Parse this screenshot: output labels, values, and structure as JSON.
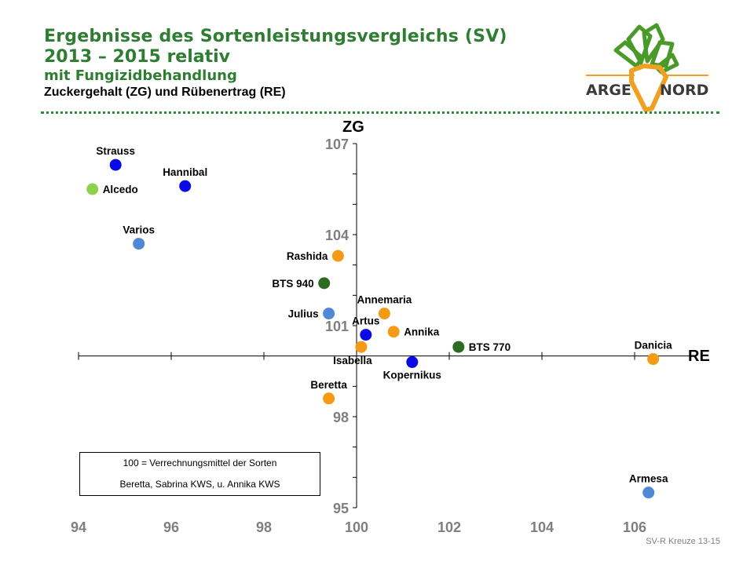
{
  "header": {
    "title_line1": "Ergebnisse des Sortenleistungsvergleichs (SV)",
    "title_line2": "2013 – 2015 relativ",
    "title_line3": "mit Fungizidbehandlung",
    "subtitle": "Zuckergehalt (ZG)  und Rübenertrag (RE)"
  },
  "logo": {
    "word_left": "ARGE",
    "word_right": "NORD",
    "colors": {
      "green": "#4a9a2a",
      "orange": "#f0a020",
      "text": "#3a3a3a"
    }
  },
  "legend_note": {
    "line1": "100 = Verrechnungsmittel der Sorten",
    "line2": "Beretta, Sabrina KWS, u. Annika KWS"
  },
  "footer": "SV-R Kreuze 13-15",
  "colors": {
    "blue": "#0a0ae6",
    "lightblue": "#4f88d6",
    "orange": "#f59a14",
    "darkgreen": "#2e6b22",
    "lightgreen": "#8ed14c"
  },
  "chart_data": {
    "type": "scatter",
    "xlabel": "RE",
    "ylabel": "ZG",
    "xlim": [
      94,
      107.3
    ],
    "ylim": [
      95,
      107
    ],
    "x_ticks": [
      94,
      96,
      98,
      100,
      102,
      104,
      106
    ],
    "y_ticks": [
      95,
      98,
      101,
      104,
      107
    ],
    "x_axis_crosses_at_y": 100,
    "y_axis_crosses_at_x": 100,
    "points": [
      {
        "label": "Strauss",
        "x": 94.8,
        "y": 106.3,
        "color": "blue",
        "label_pos": "above"
      },
      {
        "label": "Alcedo",
        "x": 94.3,
        "y": 105.5,
        "color": "lightgreen",
        "label_pos": "right"
      },
      {
        "label": "Hannibal",
        "x": 96.3,
        "y": 105.6,
        "color": "blue",
        "label_pos": "above"
      },
      {
        "label": "Varios",
        "x": 95.3,
        "y": 103.7,
        "color": "lightblue",
        "label_pos": "above"
      },
      {
        "label": "Rashida",
        "x": 99.6,
        "y": 103.3,
        "color": "orange",
        "label_pos": "left"
      },
      {
        "label": "BTS 940",
        "x": 99.3,
        "y": 102.4,
        "color": "darkgreen",
        "label_pos": "left"
      },
      {
        "label": "Annemaria",
        "x": 100.6,
        "y": 101.4,
        "color": "orange",
        "label_pos": "above"
      },
      {
        "label": "Julius",
        "x": 99.4,
        "y": 101.4,
        "color": "lightblue",
        "label_pos": "left"
      },
      {
        "label": "Artus",
        "x": 100.2,
        "y": 100.7,
        "color": "blue",
        "label_pos": "above"
      },
      {
        "label": "Annika",
        "x": 100.8,
        "y": 100.8,
        "color": "orange",
        "label_pos": "right"
      },
      {
        "label": "BTS 770",
        "x": 102.2,
        "y": 100.3,
        "color": "darkgreen",
        "label_pos": "right"
      },
      {
        "label": "Isabella",
        "x": 100.1,
        "y": 100.3,
        "color": "orange",
        "label_pos": "below-left"
      },
      {
        "label": "Kopernikus",
        "x": 101.2,
        "y": 99.8,
        "color": "blue",
        "label_pos": "below"
      },
      {
        "label": "Danicia",
        "x": 106.4,
        "y": 99.9,
        "color": "orange",
        "label_pos": "above"
      },
      {
        "label": "Beretta",
        "x": 99.4,
        "y": 98.6,
        "color": "orange",
        "label_pos": "above"
      },
      {
        "label": "Armesa",
        "x": 106.3,
        "y": 95.5,
        "color": "lightblue",
        "label_pos": "above"
      }
    ]
  }
}
